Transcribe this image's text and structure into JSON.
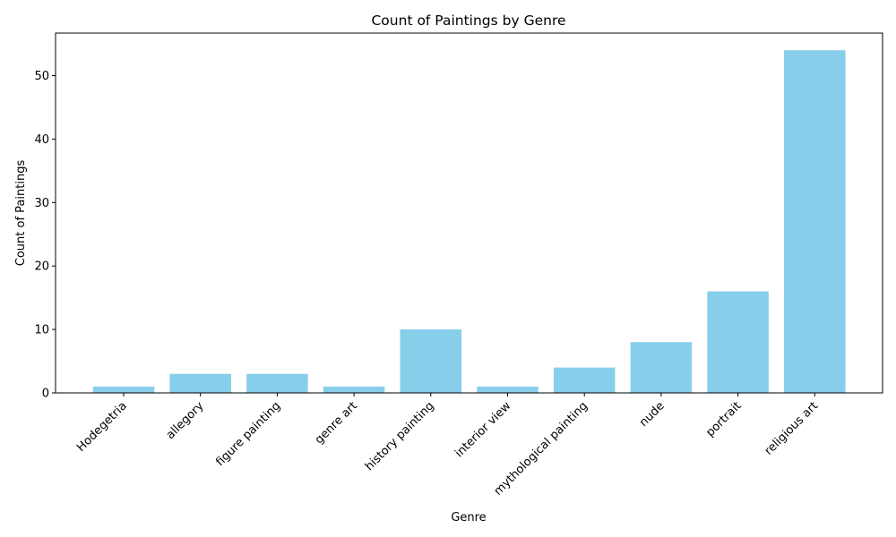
{
  "chart_data": {
    "type": "bar",
    "title": "Count of Paintings by Genre",
    "xlabel": "Genre",
    "ylabel": "Count of Paintings",
    "categories": [
      "Hodegetria",
      "allegory",
      "figure painting",
      "genre art",
      "history painting",
      "interior view",
      "mythological painting",
      "nude",
      "portrait",
      "religious art"
    ],
    "values": [
      1,
      3,
      3,
      1,
      10,
      1,
      4,
      8,
      16,
      54
    ],
    "ylim": [
      0,
      56.7
    ],
    "yticks": [
      0,
      10,
      20,
      30,
      40,
      50
    ],
    "bar_color": "#87ceeb",
    "grid": false,
    "legend": "none"
  }
}
